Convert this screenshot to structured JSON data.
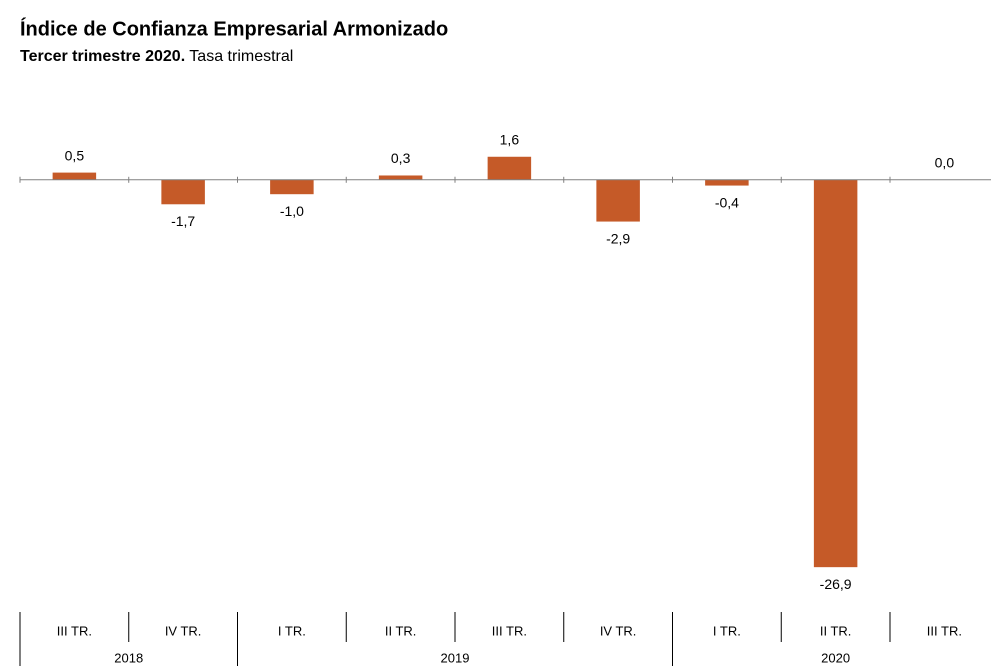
{
  "chart_data": {
    "type": "bar",
    "title": "Índice de Confianza Empresarial Armonizado",
    "subtitle_bold": "Tercer trimestre 2020.",
    "subtitle": "Tasa trimestral",
    "categories": [
      "III TR.",
      "IV TR.",
      "I TR.",
      "II TR.",
      "III TR.",
      "IV TR.",
      "I TR.",
      "II TR.",
      "III TR."
    ],
    "groups": [
      "2018",
      "2018",
      "2019",
      "2019",
      "2019",
      "2019",
      "2020",
      "2020",
      "2020"
    ],
    "values": [
      0.5,
      -1.7,
      -1.0,
      0.3,
      1.6,
      -2.9,
      -0.4,
      -26.9,
      0.0
    ],
    "value_labels": [
      "0,5",
      "-1,7",
      "-1,0",
      "0,3",
      "1,6",
      "-2,9",
      "-0,4",
      "-26,9",
      "0,0"
    ],
    "color": "#c55a28",
    "ylim": [
      -28,
      2
    ]
  }
}
